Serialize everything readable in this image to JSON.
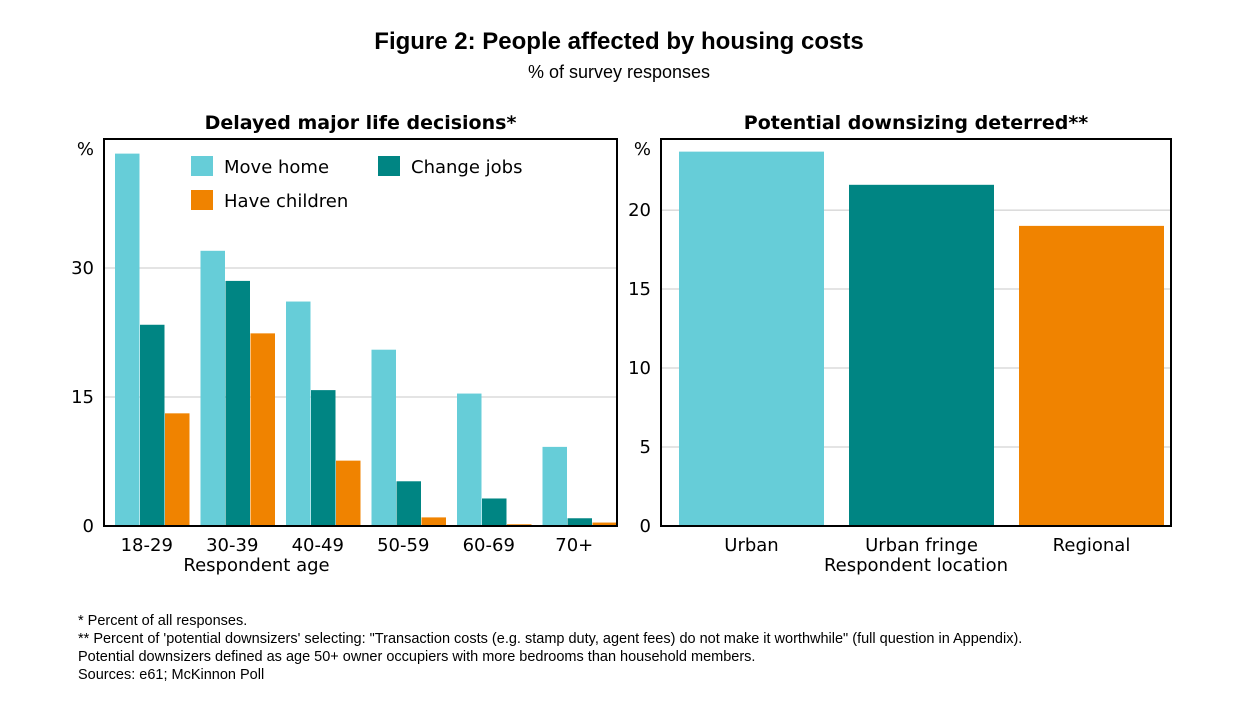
{
  "figure": {
    "title": "Figure 2: People affected by housing costs",
    "subtitle": "% of survey responses"
  },
  "colors": {
    "light_teal": "#66cdd8",
    "dark_teal": "#008583",
    "orange": "#f08300",
    "gridline": "#c8c8c8",
    "frame": "#000000"
  },
  "chart_data": [
    {
      "type": "bar",
      "title": "Delayed major life decisions*",
      "ylabel": "%",
      "xlabel": "Respondent age",
      "categories": [
        "18-29",
        "30-39",
        "40-49",
        "50-59",
        "60-69",
        "70+"
      ],
      "series": [
        {
          "name": "Move home",
          "color": "#66cdd8",
          "values": [
            43.3,
            32.0,
            26.1,
            20.5,
            15.4,
            9.2
          ]
        },
        {
          "name": "Change jobs",
          "color": "#008583",
          "values": [
            23.4,
            28.5,
            15.8,
            5.2,
            3.2,
            0.9
          ]
        },
        {
          "name": "Have children",
          "color": "#f08300",
          "values": [
            13.1,
            22.4,
            7.6,
            1.0,
            0.2,
            0.4
          ]
        }
      ],
      "yticks": [
        0,
        15,
        30
      ],
      "ylim": [
        0,
        45
      ],
      "grid": true,
      "legend": "top-left"
    },
    {
      "type": "bar",
      "title": "Potential downsizing deterred**",
      "ylabel": "%",
      "xlabel": "Respondent location",
      "categories": [
        "Urban",
        "Urban fringe",
        "Regional"
      ],
      "values": [
        23.7,
        21.6,
        19.0
      ],
      "colors": [
        "#66cdd8",
        "#008583",
        "#f08300"
      ],
      "yticks": [
        0,
        5,
        10,
        15,
        20
      ],
      "ylim": [
        0,
        24.5
      ],
      "grid": true
    }
  ],
  "notes": {
    "line1": "* Percent of all responses.",
    "line2": "** Percent of 'potential downsizers' selecting: \"Transaction costs (e.g. stamp duty, agent fees) do not make it worthwhile\" (full question in Appendix).",
    "line3": "Potential downsizers defined as age 50+ owner occupiers with more bedrooms than household members.",
    "line4": "Sources: e61; McKinnon Poll"
  }
}
